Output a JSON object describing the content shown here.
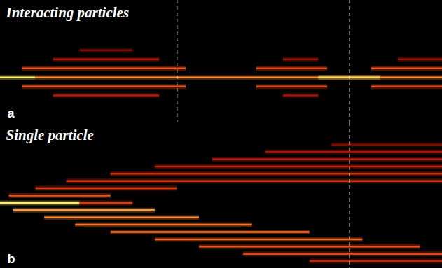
{
  "chart_data": [
    {
      "type": "heatmap",
      "title": "Interacting particles",
      "panel_label": "a",
      "tick_labels": false,
      "xlim": [
        0,
        100
      ],
      "ylim": [
        -5,
        8.5
      ],
      "dashed_lines": [
        40,
        79
      ],
      "intensity_lim": [
        0,
        1
      ],
      "cells": [
        {
          "site": 0,
          "x_start": 0,
          "x_end": 8,
          "intensity": 1.0
        },
        {
          "site": 0,
          "x_start": 8,
          "x_end": 100,
          "intensity": 0.75
        },
        {
          "site": 0,
          "x_start": 72,
          "x_end": 86,
          "intensity": 0.95
        },
        {
          "site": 1,
          "x_start": 5,
          "x_end": 42,
          "intensity": 0.6
        },
        {
          "site": 1,
          "x_start": 58,
          "x_end": 74,
          "intensity": 0.55
        },
        {
          "site": 1,
          "x_start": 84,
          "x_end": 100,
          "intensity": 0.6
        },
        {
          "site": -1,
          "x_start": 5,
          "x_end": 42,
          "intensity": 0.6
        },
        {
          "site": -1,
          "x_start": 58,
          "x_end": 74,
          "intensity": 0.55
        },
        {
          "site": -1,
          "x_start": 84,
          "x_end": 100,
          "intensity": 0.55
        },
        {
          "site": 2,
          "x_start": 12,
          "x_end": 36,
          "intensity": 0.35
        },
        {
          "site": 2,
          "x_start": 64,
          "x_end": 72,
          "intensity": 0.3
        },
        {
          "site": 2,
          "x_start": 90,
          "x_end": 100,
          "intensity": 0.3
        },
        {
          "site": -2,
          "x_start": 12,
          "x_end": 36,
          "intensity": 0.35
        },
        {
          "site": -2,
          "x_start": 64,
          "x_end": 72,
          "intensity": 0.3
        },
        {
          "site": 3,
          "x_start": 18,
          "x_end": 30,
          "intensity": 0.2
        }
      ]
    },
    {
      "type": "heatmap",
      "title": "Single particle",
      "panel_label": "b",
      "tick_labels": false,
      "xlim": [
        0,
        100
      ],
      "ylim": [
        -9,
        11
      ],
      "dashed_lines": [
        79
      ],
      "intensity_lim": [
        0,
        1
      ],
      "cells": [
        {
          "site": 0,
          "x_start": 0,
          "x_end": 18,
          "intensity": 1.0
        },
        {
          "site": 0,
          "x_start": 18,
          "x_end": 30,
          "intensity": 0.5
        },
        {
          "site": -1,
          "x_start": 3,
          "x_end": 35,
          "intensity": 0.8
        },
        {
          "site": -2,
          "x_start": 10,
          "x_end": 45,
          "intensity": 0.75
        },
        {
          "site": -3,
          "x_start": 17,
          "x_end": 57,
          "intensity": 0.7
        },
        {
          "site": -4,
          "x_start": 25,
          "x_end": 70,
          "intensity": 0.7
        },
        {
          "site": -5,
          "x_start": 35,
          "x_end": 82,
          "intensity": 0.65
        },
        {
          "site": -6,
          "x_start": 45,
          "x_end": 95,
          "intensity": 0.6
        },
        {
          "site": -7,
          "x_start": 55,
          "x_end": 100,
          "intensity": 0.55
        },
        {
          "site": -8,
          "x_start": 70,
          "x_end": 100,
          "intensity": 0.4
        },
        {
          "site": 1,
          "x_start": 2,
          "x_end": 25,
          "intensity": 0.6
        },
        {
          "site": 2,
          "x_start": 8,
          "x_end": 40,
          "intensity": 0.5
        },
        {
          "site": 3,
          "x_start": 15,
          "x_end": 100,
          "intensity": 0.45
        },
        {
          "site": 4,
          "x_start": 25,
          "x_end": 100,
          "intensity": 0.45
        },
        {
          "site": 5,
          "x_start": 35,
          "x_end": 100,
          "intensity": 0.4
        },
        {
          "site": 6,
          "x_start": 48,
          "x_end": 100,
          "intensity": 0.35
        },
        {
          "site": 7,
          "x_start": 60,
          "x_end": 100,
          "intensity": 0.3
        },
        {
          "site": 8,
          "x_start": 75,
          "x_end": 100,
          "intensity": 0.2
        }
      ]
    }
  ]
}
